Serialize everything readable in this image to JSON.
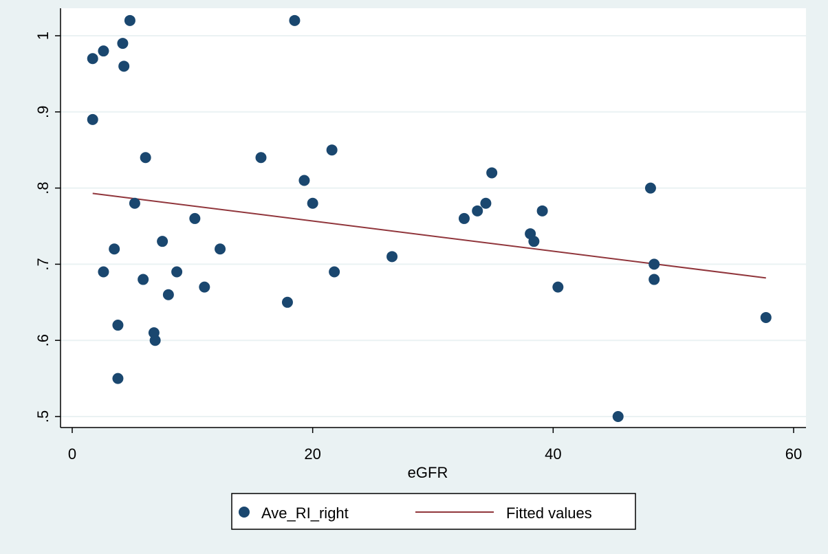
{
  "chart_data": {
    "type": "scatter",
    "title": "",
    "xlabel": "eGFR",
    "ylabel": "",
    "xlim": [
      0,
      60
    ],
    "ylim": [
      0.5,
      1.0
    ],
    "x_ticks": [
      {
        "value": 0,
        "label": "0"
      },
      {
        "value": 20,
        "label": "20"
      },
      {
        "value": 40,
        "label": "40"
      },
      {
        "value": 60,
        "label": "60"
      }
    ],
    "y_ticks": [
      {
        "value": 0.5,
        "label": ".5"
      },
      {
        "value": 0.6,
        "label": ".6"
      },
      {
        "value": 0.7,
        "label": ".7"
      },
      {
        "value": 0.8,
        "label": ".8"
      },
      {
        "value": 0.9,
        "label": ".9"
      },
      {
        "value": 1.0,
        "label": "1"
      }
    ],
    "grid": "horizontal",
    "legend_position": "bottom",
    "series": [
      {
        "name": "Ave_RI_right",
        "kind": "scatter",
        "color": "#1a476f",
        "points": [
          {
            "x": 1.7,
            "y": 0.97
          },
          {
            "x": 1.7,
            "y": 0.89
          },
          {
            "x": 2.6,
            "y": 0.98
          },
          {
            "x": 2.6,
            "y": 0.69
          },
          {
            "x": 3.5,
            "y": 0.72
          },
          {
            "x": 3.8,
            "y": 0.62
          },
          {
            "x": 3.8,
            "y": 0.55
          },
          {
            "x": 4.2,
            "y": 0.99
          },
          {
            "x": 4.3,
            "y": 0.96
          },
          {
            "x": 4.8,
            "y": 1.02
          },
          {
            "x": 5.2,
            "y": 0.78
          },
          {
            "x": 5.9,
            "y": 0.68
          },
          {
            "x": 6.1,
            "y": 0.84
          },
          {
            "x": 6.8,
            "y": 0.61
          },
          {
            "x": 6.9,
            "y": 0.6
          },
          {
            "x": 7.5,
            "y": 0.73
          },
          {
            "x": 8.0,
            "y": 0.66
          },
          {
            "x": 8.7,
            "y": 0.69
          },
          {
            "x": 10.2,
            "y": 0.76
          },
          {
            "x": 11.0,
            "y": 0.67
          },
          {
            "x": 12.3,
            "y": 0.72
          },
          {
            "x": 15.7,
            "y": 0.84
          },
          {
            "x": 17.9,
            "y": 0.65
          },
          {
            "x": 18.5,
            "y": 1.02
          },
          {
            "x": 19.3,
            "y": 0.81
          },
          {
            "x": 20.0,
            "y": 0.78
          },
          {
            "x": 21.6,
            "y": 0.85
          },
          {
            "x": 21.8,
            "y": 0.69
          },
          {
            "x": 26.6,
            "y": 0.71
          },
          {
            "x": 32.6,
            "y": 0.76
          },
          {
            "x": 33.7,
            "y": 0.77
          },
          {
            "x": 34.4,
            "y": 0.78
          },
          {
            "x": 34.9,
            "y": 0.82
          },
          {
            "x": 38.1,
            "y": 0.74
          },
          {
            "x": 38.4,
            "y": 0.73
          },
          {
            "x": 39.1,
            "y": 0.77
          },
          {
            "x": 40.4,
            "y": 0.67
          },
          {
            "x": 45.4,
            "y": 0.5
          },
          {
            "x": 48.1,
            "y": 0.8
          },
          {
            "x": 48.4,
            "y": 0.7
          },
          {
            "x": 48.4,
            "y": 0.68
          },
          {
            "x": 57.7,
            "y": 0.63
          }
        ]
      },
      {
        "name": "Fitted values",
        "kind": "line",
        "color": "#90353b",
        "points": [
          {
            "x": 1.7,
            "y": 0.793
          },
          {
            "x": 57.7,
            "y": 0.682
          }
        ]
      }
    ]
  }
}
